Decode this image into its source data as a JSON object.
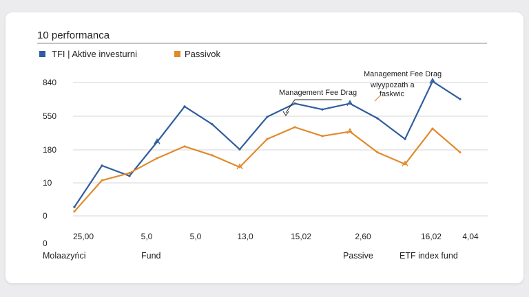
{
  "colors": {
    "active": "#2f5d9e",
    "passive": "#e08a2c",
    "grid": "#d6d6d6"
  },
  "chart_data": {
    "type": "line",
    "title": "10 performanca",
    "legend": {
      "placement": "top-left",
      "entries": [
        "TFI | Aktive investurni",
        "Passivok"
      ]
    },
    "y_ticks": [
      "840",
      "550",
      "180",
      "10",
      "0",
      "0"
    ],
    "x_ticks": [
      "25,00",
      "5,0",
      "5,0",
      "13,0",
      "15,02",
      "2,60",
      "16,02",
      "4,04"
    ],
    "category_labels": [
      "Molaazyńci",
      "Fund",
      "Passive",
      "ETF index fund"
    ],
    "grid": true,
    "series": [
      {
        "name": "TFI | Aktive investurni",
        "color_key": "active",
        "points": [
          [
            0,
            0.6
          ],
          [
            1,
            3.4
          ],
          [
            2,
            2.7
          ],
          [
            3,
            5.0
          ],
          [
            4,
            7.4
          ],
          [
            5,
            6.2
          ],
          [
            6,
            4.5
          ],
          [
            7,
            6.7
          ],
          [
            8,
            7.6
          ],
          [
            9,
            7.2
          ],
          [
            10,
            7.6
          ],
          [
            11,
            6.6
          ],
          [
            12,
            5.2
          ],
          [
            13,
            9.1
          ],
          [
            14,
            7.9
          ]
        ]
      },
      {
        "name": "Passivok",
        "color_key": "passive",
        "points": [
          [
            0,
            0.3
          ],
          [
            1,
            2.4
          ],
          [
            2,
            2.9
          ],
          [
            3,
            3.9
          ],
          [
            4,
            4.7
          ],
          [
            5,
            4.1
          ],
          [
            6,
            3.3
          ],
          [
            7,
            5.2
          ],
          [
            8,
            6.0
          ],
          [
            9,
            5.4
          ],
          [
            10,
            5.7
          ],
          [
            11,
            4.3
          ],
          [
            12,
            3.5
          ],
          [
            13,
            5.9
          ],
          [
            14,
            4.3
          ]
        ]
      }
    ],
    "annotations": [
      {
        "text": "Management Fee Drag",
        "color_key": "active"
      },
      {
        "text": "Management Fee Drag"
      },
      {
        "text": "wiyypozath a"
      },
      {
        "text": "faskwic",
        "color_key": "passive"
      }
    ]
  }
}
